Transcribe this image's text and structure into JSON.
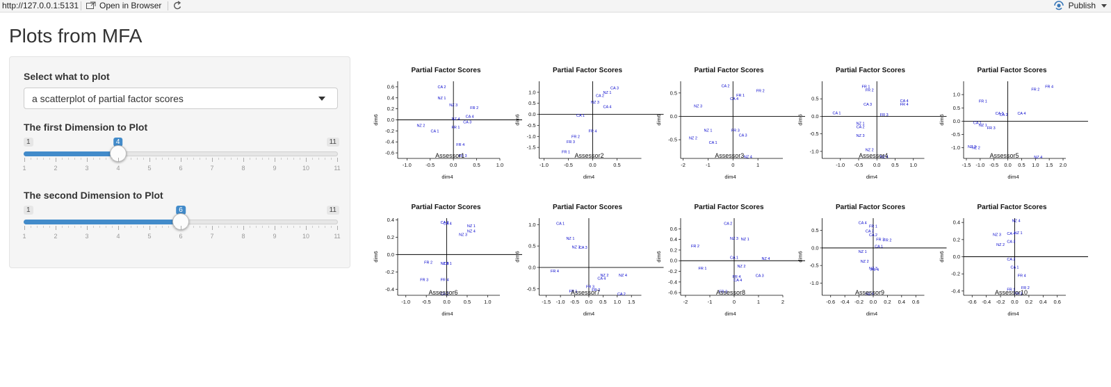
{
  "topbar": {
    "url": "http://127.0.0.1:5131",
    "open_label": "Open in Browser",
    "publish_label": "Publish"
  },
  "page": {
    "title": "Plots from MFA"
  },
  "controls": {
    "select_label": "Select what to plot",
    "select_value": "a scatterplot of partial factor scores",
    "dim1": {
      "label": "The first Dimension to Plot",
      "min": 1,
      "max": 11,
      "value": 4,
      "ticks": [
        "1",
        "2",
        "3",
        "4",
        "5",
        "6",
        "7",
        "8",
        "9",
        "10",
        "11"
      ]
    },
    "dim2": {
      "label": "The second Dimension to Plot",
      "min": 1,
      "max": 11,
      "value": 6,
      "ticks": [
        "1",
        "2",
        "3",
        "4",
        "5",
        "6",
        "7",
        "8",
        "9",
        "10",
        "11"
      ]
    }
  },
  "colors": {
    "accent": "#428bca",
    "point": "#0000cc"
  },
  "chart_data": [
    {
      "type": "scatter",
      "title": "Partial Factor Scores",
      "xlabel": "dim4",
      "ylabel": "dim6",
      "subtitle": "Assessor1",
      "xlim": [
        -1.2,
        1.0
      ],
      "ylim": [
        -0.7,
        0.7
      ],
      "xticks": [
        "-1.0",
        "-0.5",
        "0.0",
        "0.5",
        "1.0"
      ],
      "yticks": [
        "-0.6",
        "-0.4",
        "-0.2",
        "0.0",
        "0.2",
        "0.4",
        "0.6"
      ],
      "points": [
        {
          "label": "CA 2",
          "x": -0.25,
          "y": 0.6
        },
        {
          "label": "NZ 1",
          "x": -0.25,
          "y": 0.4
        },
        {
          "label": "NZ 3",
          "x": 0.0,
          "y": 0.27
        },
        {
          "label": "FR 2",
          "x": 0.45,
          "y": 0.22
        },
        {
          "label": "CA 4",
          "x": 0.35,
          "y": 0.06
        },
        {
          "label": "NZ 4",
          "x": 0.05,
          "y": 0.02
        },
        {
          "label": "CA 3",
          "x": 0.3,
          "y": -0.04
        },
        {
          "label": "NZ 2",
          "x": -0.7,
          "y": -0.1
        },
        {
          "label": "FR 1",
          "x": 0.05,
          "y": -0.13
        },
        {
          "label": "CA 1",
          "x": -0.4,
          "y": -0.2
        },
        {
          "label": "FR 4",
          "x": 0.15,
          "y": -0.45
        },
        {
          "label": "FR 3",
          "x": 0.2,
          "y": -0.65
        }
      ]
    },
    {
      "type": "scatter",
      "title": "Partial Factor Scores",
      "xlabel": "dim4",
      "ylabel": "dim6",
      "subtitle": "Assessor2",
      "xlim": [
        -1.1,
        1.0
      ],
      "ylim": [
        -2.0,
        1.5
      ],
      "xticks": [
        "-1.0",
        "-0.5",
        "0.0",
        "0.5"
      ],
      "yticks": [
        "-1.5",
        "-1.0",
        "-0.5",
        "0.0",
        "0.5",
        "1.0"
      ],
      "points": [
        {
          "label": "CA 3",
          "x": 0.45,
          "y": 1.2
        },
        {
          "label": "NZ 1",
          "x": 0.3,
          "y": 1.0
        },
        {
          "label": "CA 2",
          "x": 0.15,
          "y": 0.85
        },
        {
          "label": "NZ 3",
          "x": 0.05,
          "y": 0.55
        },
        {
          "label": "CA 4",
          "x": 0.3,
          "y": 0.35
        },
        {
          "label": "CA 1",
          "x": -0.25,
          "y": -0.05
        },
        {
          "label": "FR 4",
          "x": 0.0,
          "y": -0.75
        },
        {
          "label": "FR 2",
          "x": -0.35,
          "y": -1.0
        },
        {
          "label": "FR 3",
          "x": -0.45,
          "y": -1.25
        },
        {
          "label": "FR 1",
          "x": -0.55,
          "y": -1.7
        }
      ]
    },
    {
      "type": "scatter",
      "title": "Partial Factor Scores",
      "xlabel": "dim4",
      "ylabel": "dim6",
      "subtitle": "Assessor3",
      "xlim": [
        -2.1,
        2.0
      ],
      "ylim": [
        -0.9,
        0.75
      ],
      "xticks": [
        "-2",
        "-1",
        "0",
        "1"
      ],
      "yticks": [
        "-0.5",
        "0.0",
        "0.5"
      ],
      "points": [
        {
          "label": "CA 2",
          "x": -0.3,
          "y": 0.65
        },
        {
          "label": "FR 2",
          "x": 1.1,
          "y": 0.55
        },
        {
          "label": "FR 1",
          "x": 0.3,
          "y": 0.45
        },
        {
          "label": "CA 4",
          "x": 0.05,
          "y": 0.38
        },
        {
          "label": "NZ 3",
          "x": -1.4,
          "y": 0.22
        },
        {
          "label": "NZ 1",
          "x": -1.0,
          "y": -0.3
        },
        {
          "label": "FR 3",
          "x": 0.1,
          "y": -0.3
        },
        {
          "label": "CA 3",
          "x": 0.4,
          "y": -0.4
        },
        {
          "label": "NZ 2",
          "x": -1.6,
          "y": -0.46
        },
        {
          "label": "CA 1",
          "x": -0.8,
          "y": -0.56
        },
        {
          "label": "NZ 4",
          "x": 0.6,
          "y": -0.86
        }
      ]
    },
    {
      "type": "scatter",
      "title": "Partial Factor Scores",
      "xlabel": "dim4",
      "ylabel": "dim6",
      "subtitle": "Assessor4",
      "xlim": [
        -1.5,
        1.3
      ],
      "ylim": [
        -1.2,
        1.0
      ],
      "xticks": [
        "-1.0",
        "-0.5",
        "0.0",
        "0.5",
        "1.0"
      ],
      "yticks": [
        "-1.0",
        "-0.5",
        "0.0",
        "0.5"
      ],
      "points": [
        {
          "label": "FR 1",
          "x": -0.3,
          "y": 0.85
        },
        {
          "label": "FR 2",
          "x": -0.2,
          "y": 0.75
        },
        {
          "label": "CA 4",
          "x": 0.75,
          "y": 0.45
        },
        {
          "label": "FR 4",
          "x": 0.75,
          "y": 0.35
        },
        {
          "label": "CA 3",
          "x": -0.25,
          "y": 0.35
        },
        {
          "label": "CA 1",
          "x": -1.1,
          "y": 0.1
        },
        {
          "label": "FR 3",
          "x": 0.2,
          "y": 0.05
        },
        {
          "label": "NZ 1",
          "x": -0.45,
          "y": -0.2
        },
        {
          "label": "CA 2",
          "x": -0.45,
          "y": -0.3
        },
        {
          "label": "NZ 3",
          "x": -0.45,
          "y": -0.55
        },
        {
          "label": "NZ 2",
          "x": -0.2,
          "y": -0.95
        },
        {
          "label": "NZ 4",
          "x": 0.2,
          "y": -1.15
        }
      ]
    },
    {
      "type": "scatter",
      "title": "Partial Factor Scores",
      "xlabel": "dim4",
      "ylabel": "dim6",
      "subtitle": "Assessor5",
      "xlim": [
        -1.6,
        2.1
      ],
      "ylim": [
        -1.4,
        1.5
      ],
      "xticks": [
        "-1.5",
        "-1.0",
        "-0.5",
        "0.0",
        "0.5",
        "1.0",
        "1.5",
        "2.0"
      ],
      "yticks": [
        "-1.0",
        "-0.5",
        "0.0",
        "0.5",
        "1.0"
      ],
      "points": [
        {
          "label": "FR 4",
          "x": 1.5,
          "y": 1.3
        },
        {
          "label": "FR 2",
          "x": 1.0,
          "y": 1.2
        },
        {
          "label": "FR 1",
          "x": -0.9,
          "y": 0.75
        },
        {
          "label": "CA 4",
          "x": 0.5,
          "y": 0.3
        },
        {
          "label": "CA 3",
          "x": -0.3,
          "y": 0.3
        },
        {
          "label": "CA 2",
          "x": -0.15,
          "y": 0.25
        },
        {
          "label": "CA 1",
          "x": -1.1,
          "y": -0.05
        },
        {
          "label": "NZ 1",
          "x": -0.9,
          "y": -0.15
        },
        {
          "label": "FR 3",
          "x": -0.6,
          "y": -0.25
        },
        {
          "label": "NZ 3",
          "x": -1.3,
          "y": -0.95
        },
        {
          "label": "NZ 2",
          "x": -1.15,
          "y": -1.0
        },
        {
          "label": "NZ 4",
          "x": 1.1,
          "y": -1.35
        }
      ]
    },
    {
      "type": "scatter",
      "title": "Partial Factor Scores",
      "xlabel": "dim4",
      "ylabel": "dim6",
      "subtitle": "Assessor6",
      "xlim": [
        -1.2,
        1.3
      ],
      "ylim": [
        -0.47,
        0.42
      ],
      "xticks": [
        "-1.0",
        "-0.5",
        "0.0",
        "0.5",
        "1.0"
      ],
      "yticks": [
        "-0.4",
        "-0.2",
        "0.0",
        "0.2",
        "0.4"
      ],
      "points": [
        {
          "label": "CA 3",
          "x": -0.05,
          "y": 0.37
        },
        {
          "label": "CA 4",
          "x": 0.02,
          "y": 0.36
        },
        {
          "label": "NZ 1",
          "x": 0.6,
          "y": 0.33
        },
        {
          "label": "NZ 4",
          "x": 0.6,
          "y": 0.27
        },
        {
          "label": "NZ 3",
          "x": 0.4,
          "y": 0.23
        },
        {
          "label": "FR 2",
          "x": -0.45,
          "y": -0.09
        },
        {
          "label": "NZ 2",
          "x": -0.05,
          "y": -0.1
        },
        {
          "label": "CA 1",
          "x": 0.02,
          "y": -0.1
        },
        {
          "label": "FR 3",
          "x": -0.55,
          "y": -0.29
        },
        {
          "label": "FR 4",
          "x": -0.05,
          "y": -0.29
        },
        {
          "label": "CA 2",
          "x": -0.05,
          "y": -0.45
        }
      ]
    },
    {
      "type": "scatter",
      "title": "Partial Factor Scores",
      "xlabel": "dim4",
      "ylabel": "dim6",
      "subtitle": "Assessor7",
      "xlim": [
        -1.75,
        1.85
      ],
      "ylim": [
        -0.65,
        1.15
      ],
      "xticks": [
        "-1.5",
        "-1.0",
        "-0.5",
        "0.0",
        "0.5",
        "1.0",
        "1.5"
      ],
      "yticks": [
        "-0.5",
        "0.0",
        "0.5",
        "1.0"
      ],
      "points": [
        {
          "label": "CA 1",
          "x": -1.0,
          "y": 1.03
        },
        {
          "label": "NZ 1",
          "x": -0.65,
          "y": 0.68
        },
        {
          "label": "NZ 3",
          "x": -0.45,
          "y": 0.48
        },
        {
          "label": "CA 3",
          "x": -0.2,
          "y": 0.47
        },
        {
          "label": "FR 4",
          "x": -1.2,
          "y": -0.08
        },
        {
          "label": "NZ 2",
          "x": 0.55,
          "y": -0.18
        },
        {
          "label": "NZ 4",
          "x": 1.2,
          "y": -0.18
        },
        {
          "label": "CA 4",
          "x": 0.45,
          "y": -0.25
        },
        {
          "label": "FR 3",
          "x": 0.05,
          "y": -0.45
        },
        {
          "label": "FR 2",
          "x": 0.25,
          "y": -0.52
        },
        {
          "label": "FR 1",
          "x": -0.55,
          "y": -0.55
        },
        {
          "label": "CA 2",
          "x": 1.15,
          "y": -0.62
        }
      ]
    },
    {
      "type": "scatter",
      "title": "Partial Factor Scores",
      "xlabel": "dim4",
      "ylabel": "dim6",
      "subtitle": "Assessor8",
      "xlim": [
        -2.2,
        2.0
      ],
      "ylim": [
        -0.65,
        0.8
      ],
      "xticks": [
        "-2",
        "-1",
        "0",
        "1",
        "2"
      ],
      "yticks": [
        "-0.6",
        "-0.4",
        "-0.2",
        "0.0",
        "0.2",
        "0.4",
        "0.6"
      ],
      "points": [
        {
          "label": "CA 2",
          "x": -0.25,
          "y": 0.7
        },
        {
          "label": "NZ 3",
          "x": 0.0,
          "y": 0.42
        },
        {
          "label": "NZ 1",
          "x": 0.45,
          "y": 0.41
        },
        {
          "label": "FR 2",
          "x": -1.6,
          "y": 0.28
        },
        {
          "label": "CA 1",
          "x": 0.0,
          "y": 0.06
        },
        {
          "label": "NZ 4",
          "x": 1.3,
          "y": 0.04
        },
        {
          "label": "NZ 2",
          "x": 0.3,
          "y": -0.1
        },
        {
          "label": "FR 1",
          "x": -1.3,
          "y": -0.14
        },
        {
          "label": "CA 3",
          "x": 1.05,
          "y": -0.28
        },
        {
          "label": "FR 4",
          "x": 0.1,
          "y": -0.3
        },
        {
          "label": "CA 4",
          "x": 0.15,
          "y": -0.36
        },
        {
          "label": "FR 3",
          "x": -0.45,
          "y": -0.58
        }
      ]
    },
    {
      "type": "scatter",
      "title": "Partial Factor Scores",
      "xlabel": "dim4",
      "ylabel": "dim6",
      "subtitle": "Assessor9",
      "xlim": [
        -0.72,
        0.72
      ],
      "ylim": [
        -1.35,
        0.85
      ],
      "xticks": [
        "-0.6",
        "-0.4",
        "-0.2",
        "0.0",
        "0.2",
        "0.4",
        "0.6"
      ],
      "yticks": [
        "-1.0",
        "-0.5",
        "0.0",
        "0.5"
      ],
      "points": [
        {
          "label": "CA 4",
          "x": -0.15,
          "y": 0.72
        },
        {
          "label": "FR 1",
          "x": 0.0,
          "y": 0.62
        },
        {
          "label": "CA 3",
          "x": -0.05,
          "y": 0.48
        },
        {
          "label": "CA 2",
          "x": 0.0,
          "y": 0.37
        },
        {
          "label": "FR 3",
          "x": 0.1,
          "y": 0.25
        },
        {
          "label": "FR 2",
          "x": 0.2,
          "y": 0.23
        },
        {
          "label": "NZ 1",
          "x": -0.15,
          "y": -0.1
        },
        {
          "label": "CA 1",
          "x": 0.08,
          "y": 0.05
        },
        {
          "label": "NZ 2",
          "x": -0.12,
          "y": -0.38
        },
        {
          "label": "NZ 3",
          "x": 0.0,
          "y": -0.58
        },
        {
          "label": "FR 4",
          "x": 0.02,
          "y": -0.62
        },
        {
          "label": "NZ 4",
          "x": -0.05,
          "y": -1.3
        }
      ]
    },
    {
      "type": "scatter",
      "title": "Partial Factor Scores",
      "xlabel": "dim4",
      "ylabel": "dim6",
      "subtitle": "Assessor10",
      "xlim": [
        -0.72,
        0.72
      ],
      "ylim": [
        -0.45,
        0.45
      ],
      "xticks": [
        "-0.6",
        "-0.4",
        "-0.2",
        "0.0",
        "0.2",
        "0.4",
        "0.6"
      ],
      "yticks": [
        "-0.4",
        "-0.2",
        "0.0",
        "0.2",
        "0.4"
      ],
      "points": [
        {
          "label": "NZ 4",
          "x": 0.02,
          "y": 0.42
        },
        {
          "label": "NZ 1",
          "x": 0.05,
          "y": 0.28
        },
        {
          "label": "CA 4",
          "x": -0.05,
          "y": 0.27
        },
        {
          "label": "NZ 3",
          "x": -0.25,
          "y": 0.26
        },
        {
          "label": "CA 3",
          "x": -0.05,
          "y": 0.18
        },
        {
          "label": "NZ 2",
          "x": -0.2,
          "y": 0.14
        },
        {
          "label": "CA 2",
          "x": -0.05,
          "y": -0.03
        },
        {
          "label": "CA 1",
          "x": 0.0,
          "y": -0.12
        },
        {
          "label": "FR 4",
          "x": 0.1,
          "y": -0.22
        },
        {
          "label": "FR 2",
          "x": 0.15,
          "y": -0.36
        },
        {
          "label": "FR 1",
          "x": -0.05,
          "y": -0.38
        },
        {
          "label": "FR 3",
          "x": 0.05,
          "y": -0.43
        }
      ]
    }
  ]
}
